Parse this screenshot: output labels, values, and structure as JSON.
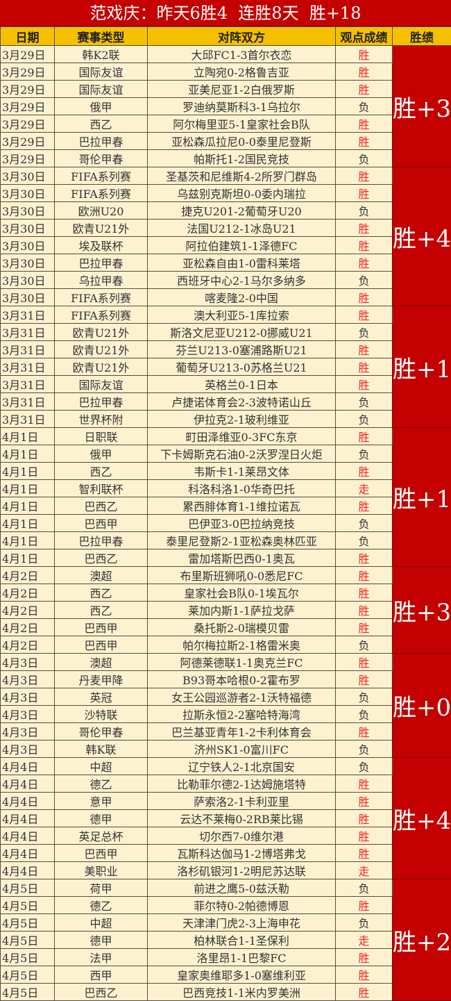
{
  "title": "范戏庆：昨天6胜4  连胜8天  胜+18",
  "headers": [
    "日期",
    "赛事类型",
    "对阵双方",
    "观点成绩",
    "胜绩"
  ],
  "colors": {
    "title_bg": "#c40000",
    "header_bg": "#f5c000",
    "row_bg": "#fdf2d0",
    "win_text": "#ff2020",
    "score_bg": "#c40000"
  },
  "groups": [
    {
      "score": "胜+3",
      "matches": [
        {
          "date": "3月29日",
          "type": "韩K2联",
          "match": "大邱FC1-3首尔衣恋",
          "result": "胜"
        },
        {
          "date": "3月29日",
          "type": "国际友谊",
          "match": "立陶宛0-2格鲁吉亚",
          "result": "胜"
        },
        {
          "date": "3月29日",
          "type": "国际友谊",
          "match": "亚美尼亚1-2白俄罗斯",
          "result": "胜"
        },
        {
          "date": "3月29日",
          "type": "俄甲",
          "match": "罗迪纳莫斯科3-1乌拉尔",
          "result": "负"
        },
        {
          "date": "3月29日",
          "type": "西乙",
          "match": "阿尔梅里亚5-1皇家社会B队",
          "result": "胜"
        },
        {
          "date": "3月29日",
          "type": "巴拉甲春",
          "match": "亚松森瓜拉尼0-0泰里尼登斯",
          "result": "胜"
        },
        {
          "date": "3月29日",
          "type": "哥伦甲春",
          "match": "帕斯托1-2国民竞技",
          "result": "负"
        }
      ]
    },
    {
      "score": "胜+4",
      "matches": [
        {
          "date": "3月30日",
          "type": "FIFA系列赛",
          "match": "圣基茨和尼维斯4-2所罗门群岛",
          "result": "胜"
        },
        {
          "date": "3月30日",
          "type": "FIFA系列赛",
          "match": "乌兹别克斯坦0-0委内瑞拉",
          "result": "胜"
        },
        {
          "date": "3月30日",
          "type": "欧洲U20",
          "match": "捷克U201-2葡萄牙U20",
          "result": "负"
        },
        {
          "date": "3月30日",
          "type": "欧青U21外",
          "match": "法国U212-1冰岛U21",
          "result": "胜"
        },
        {
          "date": "3月30日",
          "type": "埃及联杯",
          "match": "阿拉伯建筑1-1泽德FC",
          "result": "胜"
        },
        {
          "date": "3月30日",
          "type": "巴拉甲春",
          "match": "亚松森自由1-0雷科莱塔",
          "result": "胜"
        },
        {
          "date": "3月30日",
          "type": "乌拉甲春",
          "match": "西班牙中心2-1马尔多纳多",
          "result": "负"
        },
        {
          "date": "3月30日",
          "type": "FIFA系列赛",
          "match": "喀麦隆2-0中国",
          "result": "胜"
        }
      ]
    },
    {
      "score": "胜+1",
      "matches": [
        {
          "date": "3月31日",
          "type": "FIFA系列赛",
          "match": "澳大利亚5-1库拉索",
          "result": "胜"
        },
        {
          "date": "3月31日",
          "type": "欧青U21外",
          "match": "斯洛文尼亚U212-0挪威U21",
          "result": "负"
        },
        {
          "date": "3月31日",
          "type": "欧青U21外",
          "match": "芬兰U213-0塞浦路斯U21",
          "result": "胜"
        },
        {
          "date": "3月31日",
          "type": "欧青U21外",
          "match": "葡萄牙U213-0苏格兰U21",
          "result": "胜"
        },
        {
          "date": "3月31日",
          "type": "国际友谊",
          "match": "英格兰0-1日本",
          "result": "胜"
        },
        {
          "date": "3月31日",
          "type": "巴拉甲春",
          "match": "卢捷诺体育会2-3波特诺山丘",
          "result": "负"
        },
        {
          "date": "3月31日",
          "type": "世界杯附",
          "match": "伊拉克2-1玻利维亚",
          "result": "负"
        }
      ]
    },
    {
      "score": "胜+1",
      "matches": [
        {
          "date": "4月1日",
          "type": "日职联",
          "match": "町田泽维亚0-3FC东京",
          "result": "胜"
        },
        {
          "date": "4月1日",
          "type": "俄甲",
          "match": "下卡姆斯克石油0-2沃罗涅日火炬",
          "result": "负"
        },
        {
          "date": "4月1日",
          "type": "西乙",
          "match": "韦斯卡1-1莱昂文体",
          "result": "胜"
        },
        {
          "date": "4月1日",
          "type": "智利联杯",
          "match": "科洛科洛1-0华奇巴托",
          "result": "走"
        },
        {
          "date": "4月1日",
          "type": "巴西乙",
          "match": "累西腓体育1-1维拉诺瓦",
          "result": "胜"
        },
        {
          "date": "4月1日",
          "type": "巴西甲",
          "match": "巴伊亚3-0巴拉纳竞技",
          "result": "负"
        },
        {
          "date": "4月1日",
          "type": "巴拉甲春",
          "match": "泰里尼登斯2-1亚松森奥林匹亚",
          "result": "负"
        },
        {
          "date": "4月1日",
          "type": "巴西乙",
          "match": "雷加塔斯巴西0-1奥瓦",
          "result": "胜"
        }
      ]
    },
    {
      "score": "胜+3",
      "matches": [
        {
          "date": "4月2日",
          "type": "澳超",
          "match": "布里斯班狮吼0-0悉尼FC",
          "result": "胜"
        },
        {
          "date": "4月2日",
          "type": "西乙",
          "match": "皇家社会B队0-1埃瓦尔",
          "result": "胜"
        },
        {
          "date": "4月2日",
          "type": "西乙",
          "match": "莱加内斯1-1萨拉戈萨",
          "result": "胜"
        },
        {
          "date": "4月2日",
          "type": "巴西甲",
          "match": "桑托斯2-0瑞模贝雷",
          "result": "胜"
        },
        {
          "date": "4月2日",
          "type": "巴西甲",
          "match": "帕尔梅拉斯2-1格雷米奥",
          "result": "负"
        }
      ]
    },
    {
      "score": "胜+0",
      "matches": [
        {
          "date": "4月3日",
          "type": "澳超",
          "match": "阿德莱德联1-1奥克兰FC",
          "result": "胜"
        },
        {
          "date": "4月3日",
          "type": "丹麦甲降",
          "match": "B93哥本哈根0-2霍布罗",
          "result": "胜"
        },
        {
          "date": "4月3日",
          "type": "英冠",
          "match": "女王公园巡游者2-1沃特福德",
          "result": "负"
        },
        {
          "date": "4月3日",
          "type": "沙特联",
          "match": "拉斯永恒2-2塞哈特海湾",
          "result": "负"
        },
        {
          "date": "4月3日",
          "type": "哥伦甲春",
          "match": "巴兰基亚青年1-2卡利体育会",
          "result": "胜"
        },
        {
          "date": "4月3日",
          "type": "韩K联",
          "match": "济州SK1-0富川FC",
          "result": "负"
        }
      ]
    },
    {
      "score": "胜+4",
      "matches": [
        {
          "date": "4月4日",
          "type": "中超",
          "match": "辽宁铁人2-1北京国安",
          "result": "负"
        },
        {
          "date": "4月4日",
          "type": "德乙",
          "match": "比勒菲尔德2-1达姆施塔特",
          "result": "胜"
        },
        {
          "date": "4月4日",
          "type": "意甲",
          "match": "萨索洛2-1卡利亚里",
          "result": "胜"
        },
        {
          "date": "4月4日",
          "type": "德甲",
          "match": "云达不莱梅0-2RB莱比锡",
          "result": "胜"
        },
        {
          "date": "4月4日",
          "type": "英足总杯",
          "match": "切尔西7-0维尔港",
          "result": "胜"
        },
        {
          "date": "4月4日",
          "type": "巴西甲",
          "match": "瓦斯科达伽马1-2博塔弗戈",
          "result": "胜"
        },
        {
          "date": "4月4日",
          "type": "美职业",
          "match": "洛杉矶银河1-2明尼苏达联",
          "result": "走"
        }
      ]
    },
    {
      "score": "胜+2",
      "matches": [
        {
          "date": "4月5日",
          "type": "荷甲",
          "match": "前进之鹰5-0兹沃勒",
          "result": "负"
        },
        {
          "date": "4月5日",
          "type": "德乙",
          "match": "菲尔特0-2帕德博恩",
          "result": "胜"
        },
        {
          "date": "4月5日",
          "type": "中超",
          "match": "天津津门虎2-3上海申花",
          "result": "负"
        },
        {
          "date": "4月5日",
          "type": "德甲",
          "match": "柏林联合1-1圣保利",
          "result": "走"
        },
        {
          "date": "4月5日",
          "type": "法甲",
          "match": "洛里昂1-1巴黎FC",
          "result": "胜"
        },
        {
          "date": "4月5日",
          "type": "西甲",
          "match": "皇家奥维耶多1-0塞维利亚",
          "result": "胜"
        },
        {
          "date": "4月5日",
          "type": "巴西乙",
          "match": "巴西竞技1-1米内罗美洲",
          "result": "胜"
        }
      ]
    }
  ]
}
